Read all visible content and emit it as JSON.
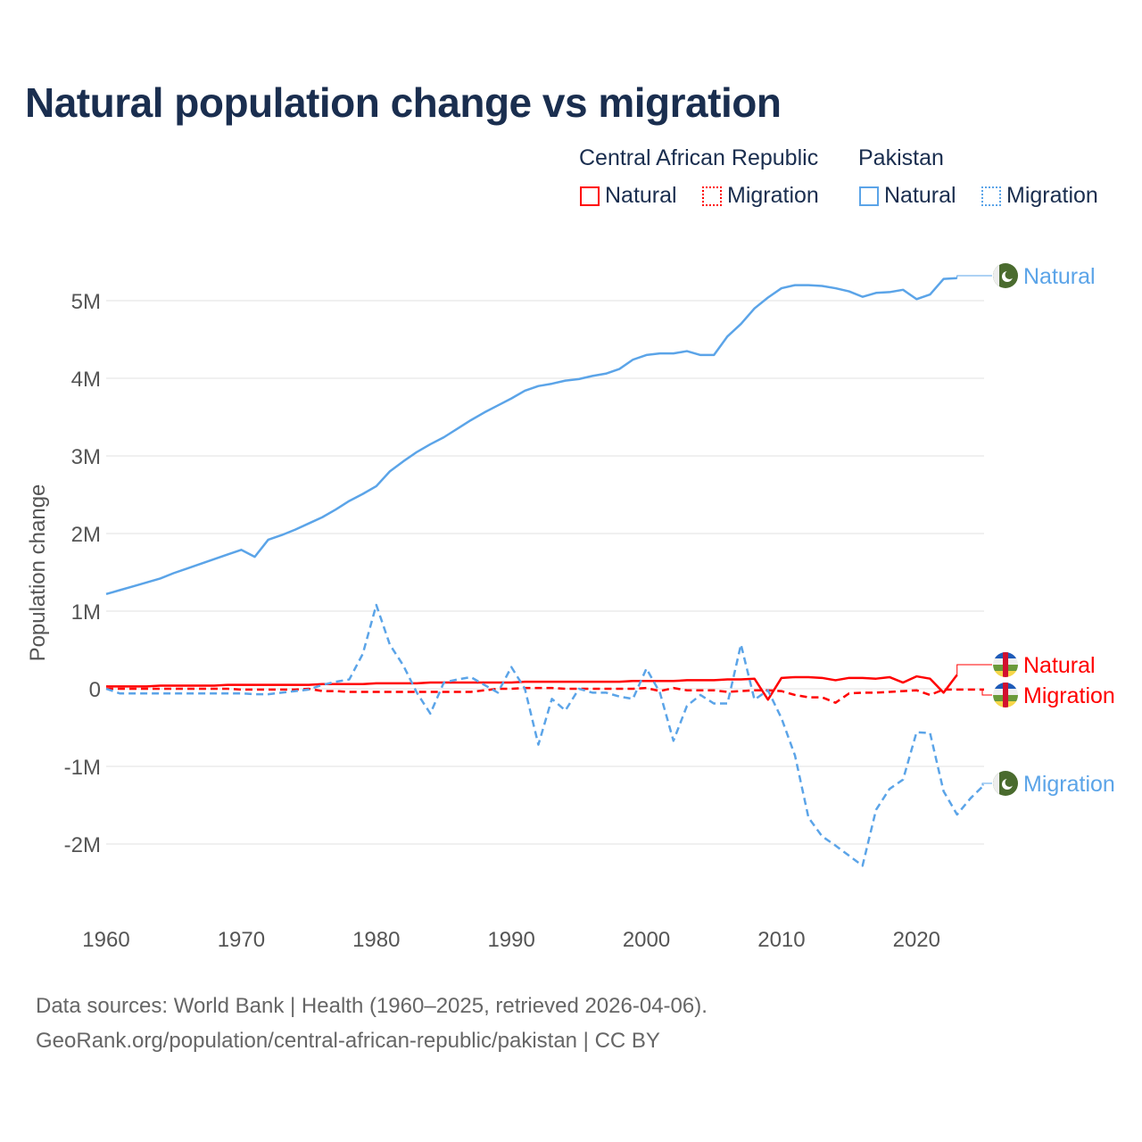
{
  "title": "Natural population change vs migration",
  "legend": {
    "groups": [
      {
        "name": "Central African Republic",
        "items": [
          "Natural",
          "Migration"
        ],
        "color": "#ff0000"
      },
      {
        "name": "Pakistan",
        "items": [
          "Natural",
          "Migration"
        ],
        "color": "#5ba4e8"
      }
    ]
  },
  "footer": {
    "line1": "Data sources: World Bank | Health (1960–2025, retrieved 2026-04-06).",
    "line2": "GeoRank.org/population/central-african-republic/pakistan | CC BY"
  },
  "chart_data": {
    "type": "line",
    "title": "Natural population change vs migration",
    "xlabel": "",
    "ylabel": "Population change",
    "xlim": [
      1960,
      2025
    ],
    "ylim": [
      -2600000,
      5400000
    ],
    "x_ticks": [
      1960,
      1970,
      1980,
      1990,
      2000,
      2010,
      2020
    ],
    "x_tick_labels": [
      "1960",
      "1970",
      "1980",
      "1990",
      "2000",
      "2010",
      "2020"
    ],
    "y_ticks": [
      -2000000,
      -1000000,
      0,
      1000000,
      2000000,
      3000000,
      4000000,
      5000000
    ],
    "y_tick_labels": [
      "-2M",
      "-1M",
      "0",
      "1M",
      "2M",
      "3M",
      "4M",
      "5M"
    ],
    "grid": true,
    "legend_position": "top-right",
    "series": [
      {
        "name": "Pakistan Natural",
        "label": "Natural",
        "color": "#5ba4e8",
        "dash": false,
        "start_year": 1960,
        "values_millions": [
          1.22,
          1.27,
          1.32,
          1.37,
          1.42,
          1.49,
          1.55,
          1.61,
          1.67,
          1.73,
          1.79,
          1.7,
          1.92,
          1.98,
          2.05,
          2.13,
          2.21,
          2.31,
          2.42,
          2.51,
          2.61,
          2.8,
          2.93,
          3.05,
          3.15,
          3.24,
          3.35,
          3.46,
          3.56,
          3.65,
          3.74,
          3.84,
          3.9,
          3.93,
          3.97,
          3.99,
          4.03,
          4.06,
          4.12,
          4.24,
          4.3,
          4.32,
          4.32,
          4.35,
          4.3,
          4.3,
          4.54,
          4.7,
          4.9,
          5.04,
          5.16,
          5.2,
          5.2,
          5.19,
          5.16,
          5.12,
          5.05,
          5.1,
          5.11,
          5.14,
          5.02,
          5.08,
          5.28,
          5.29
        ]
      },
      {
        "name": "Pakistan Migration",
        "label": "Migration",
        "color": "#5ba4e8",
        "dash": true,
        "start_year": 1960,
        "values_millions": [
          0,
          -0.06,
          -0.06,
          -0.06,
          -0.06,
          -0.06,
          -0.06,
          -0.06,
          -0.06,
          -0.06,
          -0.06,
          -0.07,
          -0.07,
          -0.05,
          -0.03,
          -0.01,
          0.05,
          0.09,
          0.12,
          0.45,
          1.08,
          0.57,
          0.3,
          -0.05,
          -0.32,
          0.08,
          0.12,
          0.15,
          0.05,
          -0.05,
          0.28,
          0.0,
          -0.72,
          -0.13,
          -0.28,
          0.0,
          -0.05,
          -0.05,
          -0.1,
          -0.13,
          0.26,
          -0.05,
          -0.67,
          -0.22,
          -0.08,
          -0.19,
          -0.19,
          0.57,
          -0.14,
          -0.02,
          -0.38,
          -0.86,
          -1.66,
          -1.9,
          -2.02,
          -2.15,
          -2.28,
          -1.56,
          -1.29,
          -1.17,
          -0.56,
          -0.57,
          -1.32,
          -1.62,
          -1.41,
          -1.24
        ]
      },
      {
        "name": "Central African Republic Natural",
        "label": "Natural",
        "color": "#ff0000",
        "dash": false,
        "start_year": 1960,
        "values_millions": [
          0.03,
          0.03,
          0.03,
          0.03,
          0.04,
          0.04,
          0.04,
          0.04,
          0.04,
          0.05,
          0.05,
          0.05,
          0.05,
          0.05,
          0.05,
          0.05,
          0.06,
          0.06,
          0.06,
          0.06,
          0.07,
          0.07,
          0.07,
          0.07,
          0.08,
          0.08,
          0.08,
          0.08,
          0.08,
          0.08,
          0.08,
          0.09,
          0.09,
          0.09,
          0.09,
          0.09,
          0.09,
          0.09,
          0.09,
          0.1,
          0.1,
          0.1,
          0.1,
          0.11,
          0.11,
          0.11,
          0.12,
          0.12,
          0.13,
          -0.14,
          0.14,
          0.15,
          0.15,
          0.14,
          0.11,
          0.14,
          0.14,
          0.13,
          0.15,
          0.08,
          0.16,
          0.13,
          -0.05,
          0.18
        ]
      },
      {
        "name": "Central African Republic Migration",
        "label": "Migration",
        "color": "#ff0000",
        "dash": true,
        "start_year": 1960,
        "values_millions": [
          0,
          0,
          0,
          0,
          0,
          0,
          0,
          0,
          0,
          0,
          -0.01,
          -0.01,
          -0.01,
          -0.01,
          -0.01,
          0,
          -0.03,
          -0.03,
          -0.04,
          -0.04,
          -0.04,
          -0.04,
          -0.04,
          -0.04,
          -0.04,
          -0.04,
          -0.04,
          -0.04,
          -0.02,
          0,
          0.0,
          0.01,
          0.01,
          0.01,
          0.0,
          0.0,
          0.0,
          0.0,
          0.0,
          0.0,
          0.01,
          -0.03,
          0.01,
          -0.02,
          -0.02,
          -0.02,
          -0.04,
          -0.03,
          -0.02,
          -0.02,
          -0.03,
          -0.08,
          -0.11,
          -0.11,
          -0.18,
          -0.06,
          -0.05,
          -0.05,
          -0.04,
          -0.03,
          -0.02,
          -0.08,
          -0.01,
          -0.01,
          -0.01,
          -0.01
        ]
      }
    ]
  }
}
